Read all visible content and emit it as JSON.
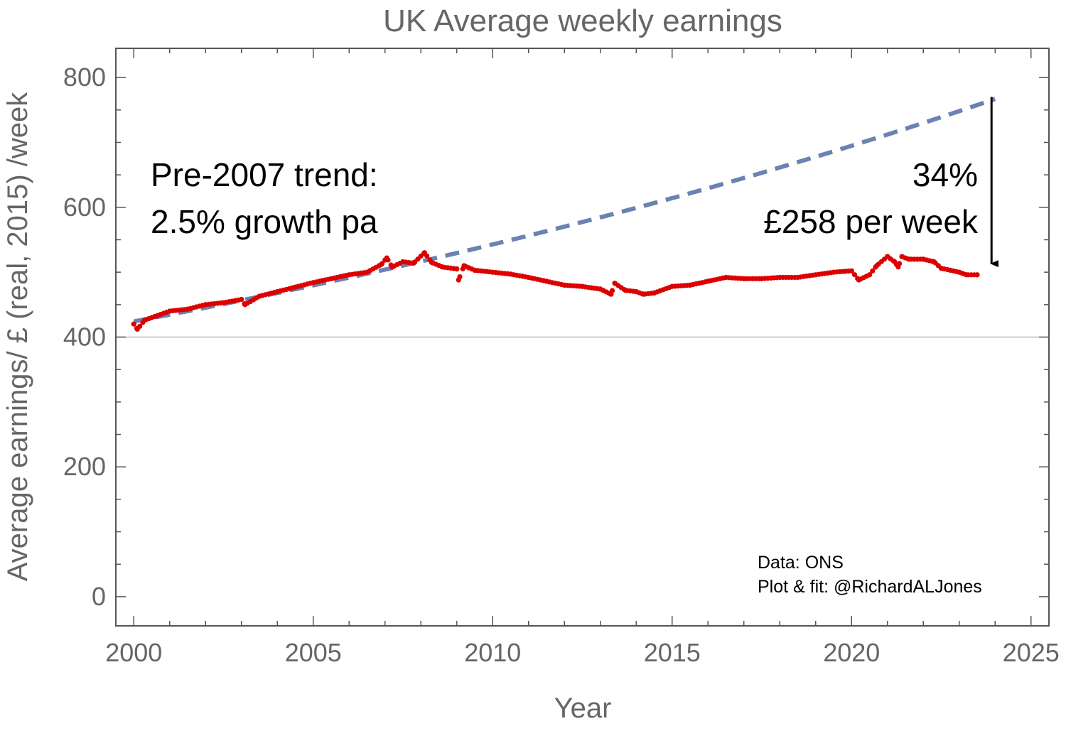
{
  "chart_data": {
    "type": "scatter",
    "title": "UK Average weekly earnings",
    "xlabel": "Year",
    "ylabel": "Average earnings/ £ (real, 2015) /week",
    "xlim": [
      1999.5,
      2025.5
    ],
    "ylim": [
      -45,
      845
    ],
    "x_ticks": [
      "2000",
      "2005",
      "2010",
      "2015",
      "2020",
      "2025"
    ],
    "y_ticks": [
      "0",
      "200",
      "400",
      "600",
      "800"
    ],
    "reference_line_y": 400,
    "series": [
      {
        "kind": "points",
        "color": "#dd0000",
        "keypoints": [
          [
            2000.0,
            420
          ],
          [
            2000.1,
            412
          ],
          [
            2000.3,
            426
          ],
          [
            2000.6,
            432
          ],
          [
            2001.0,
            440
          ],
          [
            2001.5,
            443
          ],
          [
            2002.0,
            450
          ],
          [
            2002.5,
            453
          ],
          [
            2003.0,
            458
          ],
          [
            2003.1,
            450
          ],
          [
            2003.5,
            463
          ],
          [
            2004.0,
            470
          ],
          [
            2004.5,
            477
          ],
          [
            2005.0,
            484
          ],
          [
            2005.5,
            490
          ],
          [
            2006.0,
            496
          ],
          [
            2006.5,
            500
          ],
          [
            2006.9,
            512
          ],
          [
            2007.05,
            522
          ],
          [
            2007.2,
            508
          ],
          [
            2007.5,
            516
          ],
          [
            2007.8,
            514
          ],
          [
            2008.1,
            530
          ],
          [
            2008.3,
            515
          ],
          [
            2008.6,
            508
          ],
          [
            2009.0,
            505
          ],
          [
            2009.05,
            488
          ],
          [
            2009.2,
            510
          ],
          [
            2009.5,
            503
          ],
          [
            2010.0,
            500
          ],
          [
            2010.5,
            497
          ],
          [
            2011.0,
            492
          ],
          [
            2011.5,
            486
          ],
          [
            2012.0,
            480
          ],
          [
            2012.5,
            478
          ],
          [
            2013.0,
            474
          ],
          [
            2013.3,
            466
          ],
          [
            2013.4,
            483
          ],
          [
            2013.7,
            472
          ],
          [
            2014.0,
            470
          ],
          [
            2014.2,
            466
          ],
          [
            2014.5,
            468
          ],
          [
            2015.0,
            478
          ],
          [
            2015.5,
            480
          ],
          [
            2016.0,
            486
          ],
          [
            2016.5,
            492
          ],
          [
            2017.0,
            490
          ],
          [
            2017.5,
            490
          ],
          [
            2018.0,
            492
          ],
          [
            2018.5,
            492
          ],
          [
            2019.0,
            496
          ],
          [
            2019.5,
            500
          ],
          [
            2020.0,
            502
          ],
          [
            2020.2,
            488
          ],
          [
            2020.5,
            496
          ],
          [
            2020.7,
            510
          ],
          [
            2021.0,
            524
          ],
          [
            2021.2,
            516
          ],
          [
            2021.3,
            508
          ],
          [
            2021.4,
            524
          ],
          [
            2021.6,
            520
          ],
          [
            2022.0,
            520
          ],
          [
            2022.3,
            516
          ],
          [
            2022.5,
            506
          ],
          [
            2023.0,
            500
          ],
          [
            2023.2,
            496
          ],
          [
            2023.5,
            496
          ]
        ]
      },
      {
        "kind": "trend",
        "color": "#6b82b3",
        "name": "Pre-2007 trend",
        "x_start": 2000.0,
        "x_end": 2024.0,
        "y_start": 424,
        "growth_rate": 0.025
      }
    ],
    "annotations": {
      "trend_line1": "Pre-2007 trend:",
      "trend_line2": "2.5% growth pa",
      "gap_line1": "34%",
      "gap_line2": "£258 per week",
      "credit_line1": "Data: ONS",
      "credit_line2": "Plot & fit: @RichardALJones"
    },
    "gap_arrow": {
      "x": 2023.9,
      "from_y": 770,
      "to_y": 500
    }
  }
}
